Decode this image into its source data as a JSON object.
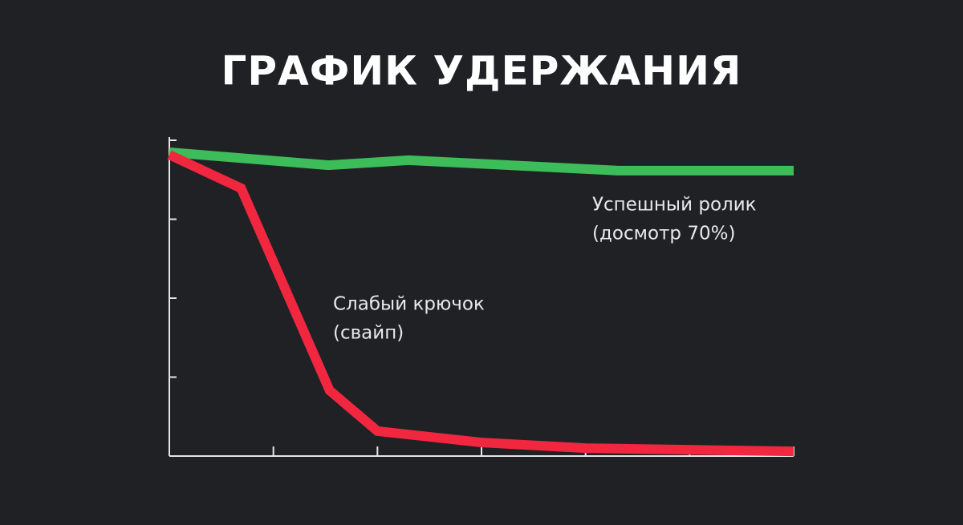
{
  "chart_data": {
    "type": "line",
    "title": "ГРАФИК УДЕРЖАНИЯ",
    "xlim": [
      0,
      6
    ],
    "xticks": [
      0,
      1,
      2,
      3,
      4,
      5,
      6
    ],
    "ylim": [
      0,
      100
    ],
    "yticks": [
      0,
      25,
      50,
      75,
      100
    ],
    "series": [
      {
        "color": "#3dbd5a",
        "x": [
          0,
          1.53,
          2.3,
          4.31,
          6
        ],
        "values": [
          96.2,
          92.1,
          93.7,
          90.4,
          90.4
        ]
      },
      {
        "color": "#f0273f",
        "x": [
          0,
          0.69,
          1.54,
          2.0,
          3.0,
          4.0,
          6.0
        ],
        "values": [
          95.4,
          84.8,
          20.8,
          7.9,
          4.3,
          2.5,
          1.5
        ]
      }
    ],
    "annotations": [
      {
        "lines": [
          "Успешный ролик",
          "(досмотр 70%)"
        ]
      },
      {
        "lines": [
          "Слабый крючок",
          "(свайп)"
        ]
      }
    ]
  }
}
